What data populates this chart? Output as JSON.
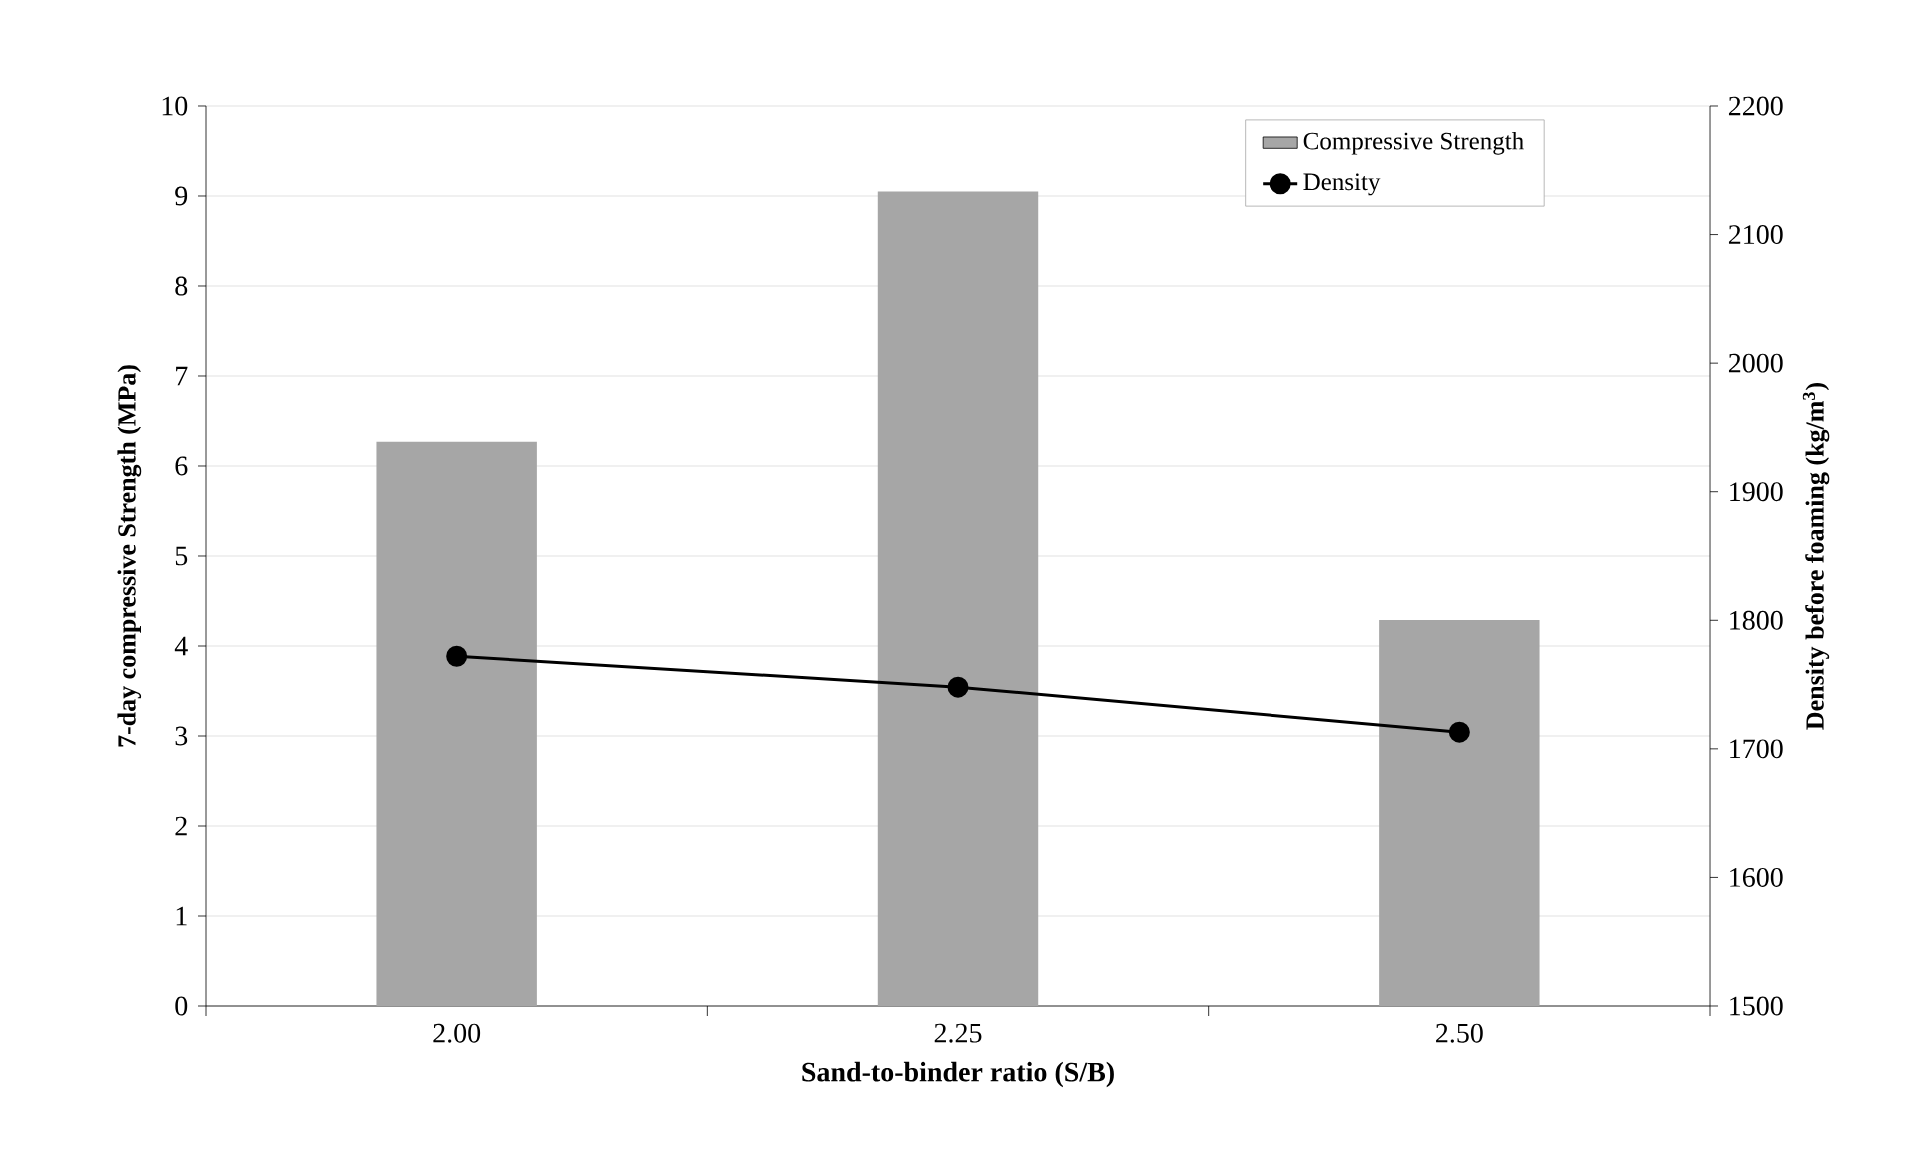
{
  "chart_data": {
    "type": "bar",
    "xlabel": "Sand-to-binder ratio (S/B)",
    "ylabel": "7-day compressive Strength (MPa)",
    "y2label": "Density before foaming (kg/m$^{3}$)",
    "categories": [
      "2.00",
      "2.25",
      "2.50"
    ],
    "series": [
      {
        "name": "Compressive Strength",
        "color": "#a6a6a6",
        "values": [
          6.27,
          9.05,
          4.29
        ]
      },
      {
        "name": "Density",
        "type": "line",
        "axis": "y2",
        "color": "#000000",
        "marker": "circle",
        "values": [
          1772,
          1748,
          1713
        ]
      }
    ],
    "ylim": [
      0,
      10
    ],
    "yticks": [
      0,
      1,
      2,
      3,
      4,
      5,
      6,
      7,
      8,
      9,
      10
    ],
    "y2lim": [
      1500,
      2200
    ],
    "y2ticks": [
      1500,
      1600,
      1700,
      1800,
      1900,
      2000,
      2100,
      2200
    ],
    "grid": "y",
    "legend": "top right"
  }
}
